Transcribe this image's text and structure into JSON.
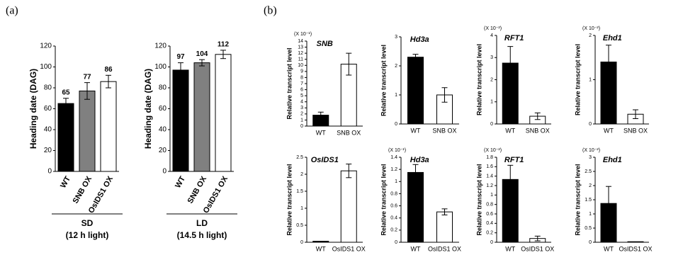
{
  "panel_labels": [
    "(a)",
    "(b)"
  ],
  "chart_data": [
    {
      "type": "bar",
      "y_label": "Heading date (DAG)",
      "categories": [
        "WT",
        "SNB OX",
        "OsIDS1 OX"
      ],
      "values": [
        65,
        77,
        86
      ],
      "errors": [
        5,
        8,
        6
      ],
      "colors": [
        "#000000",
        "#808080",
        "#ffffff"
      ],
      "ylim": [
        0,
        120
      ],
      "yticks": [
        0,
        20,
        40,
        60,
        80,
        100,
        120
      ],
      "group_label": "SD",
      "group_sublabel": "(12 h light)"
    },
    {
      "type": "bar",
      "y_label": "Heading date (DAG)",
      "categories": [
        "WT",
        "SNB OX",
        "OsIDS1 OX"
      ],
      "values": [
        97,
        104,
        112
      ],
      "errors": [
        7,
        3,
        4
      ],
      "colors": [
        "#000000",
        "#808080",
        "#ffffff"
      ],
      "ylim": [
        0,
        120
      ],
      "yticks": [
        0,
        20,
        40,
        60,
        80,
        100,
        120
      ],
      "group_label": "LD",
      "group_sublabel": "(14.5 h light)"
    },
    {
      "type": "bar",
      "title": "SNB",
      "y_label": "Relative transcript level",
      "y_multiplier": "(X 10⁻¹)",
      "categories": [
        "WT",
        "SNB OX"
      ],
      "values": [
        1.8,
        10.2
      ],
      "errors": [
        0.5,
        1.8
      ],
      "colors": [
        "#000000",
        "#ffffff"
      ],
      "ylim": [
        0,
        14
      ],
      "yticks": [
        0,
        1,
        2,
        3,
        4,
        5,
        6,
        7,
        8,
        9,
        10,
        11,
        12,
        13,
        14
      ]
    },
    {
      "type": "bar",
      "title": "Hd3a",
      "y_label": "Relative transcript level",
      "categories": [
        "WT",
        "SNB OX"
      ],
      "values": [
        2.3,
        1.0
      ],
      "errors": [
        0.1,
        0.25
      ],
      "colors": [
        "#000000",
        "#ffffff"
      ],
      "ylim": [
        0,
        3
      ],
      "yticks": [
        0,
        1,
        2,
        3
      ]
    },
    {
      "type": "bar",
      "title": "RFT1",
      "y_label": "Relative transcript level",
      "y_multiplier": "(X 10⁻²)",
      "categories": [
        "WT",
        "SNB OX"
      ],
      "values": [
        2.75,
        0.35
      ],
      "errors": [
        0.75,
        0.15
      ],
      "colors": [
        "#000000",
        "#ffffff"
      ],
      "ylim": [
        0,
        4
      ],
      "yticks": [
        0,
        1,
        2,
        3,
        4
      ]
    },
    {
      "type": "bar",
      "title": "Ehd1",
      "y_label": "Relative transcript level",
      "y_multiplier": "(X 10⁻²)",
      "categories": [
        "WT",
        "SNB OX"
      ],
      "values": [
        1.4,
        0.22
      ],
      "errors": [
        0.38,
        0.1
      ],
      "colors": [
        "#000000",
        "#ffffff"
      ],
      "ylim": [
        0,
        2
      ],
      "yticks": [
        0,
        1,
        2
      ]
    },
    {
      "type": "bar",
      "title": "OsIDS1",
      "y_label": "Relative transcript level",
      "categories": [
        "WT",
        "OsIDS1 OX"
      ],
      "values": [
        0.03,
        2.1
      ],
      "errors": [
        0,
        0.2
      ],
      "colors": [
        "#000000",
        "#ffffff"
      ],
      "ylim": [
        0,
        2.5
      ],
      "yticks": [
        0,
        0.5,
        1,
        1.5,
        2,
        2.5
      ]
    },
    {
      "type": "bar",
      "title": "Hd3a",
      "y_label": "Relative transcript level",
      "y_multiplier": "(X 10⁻¹)",
      "categories": [
        "WT",
        "OsIDS1 OX"
      ],
      "values": [
        1.15,
        0.5
      ],
      "errors": [
        0.13,
        0.05
      ],
      "colors": [
        "#000000",
        "#ffffff"
      ],
      "ylim": [
        0,
        1.4
      ],
      "yticks": [
        0,
        0.2,
        0.4,
        0.6,
        0.8,
        1,
        1.2,
        1.4
      ]
    },
    {
      "type": "bar",
      "title": "RFT1",
      "y_label": "Relative transcript level",
      "y_multiplier": "(X 10⁻²)",
      "categories": [
        "WT",
        "OsIDS1 OX"
      ],
      "values": [
        1.33,
        0.08
      ],
      "errors": [
        0.3,
        0.05
      ],
      "colors": [
        "#000000",
        "#ffffff"
      ],
      "ylim": [
        0,
        1.8
      ],
      "yticks": [
        0,
        0.2,
        0.4,
        0.6,
        0.8,
        1,
        1.2,
        1.4,
        1.6,
        1.8
      ]
    },
    {
      "type": "bar",
      "title": "Ehd1",
      "y_label": "Relative transcript level",
      "y_multiplier": "(X 10⁻²)",
      "categories": [
        "WT",
        "OsIDS1 OX"
      ],
      "values": [
        1.37,
        0.02
      ],
      "errors": [
        0.6,
        0
      ],
      "colors": [
        "#000000",
        "#ffffff"
      ],
      "ylim": [
        0,
        3
      ],
      "yticks": [
        0,
        0.5,
        1,
        1.5,
        2,
        2.5,
        3
      ]
    }
  ]
}
